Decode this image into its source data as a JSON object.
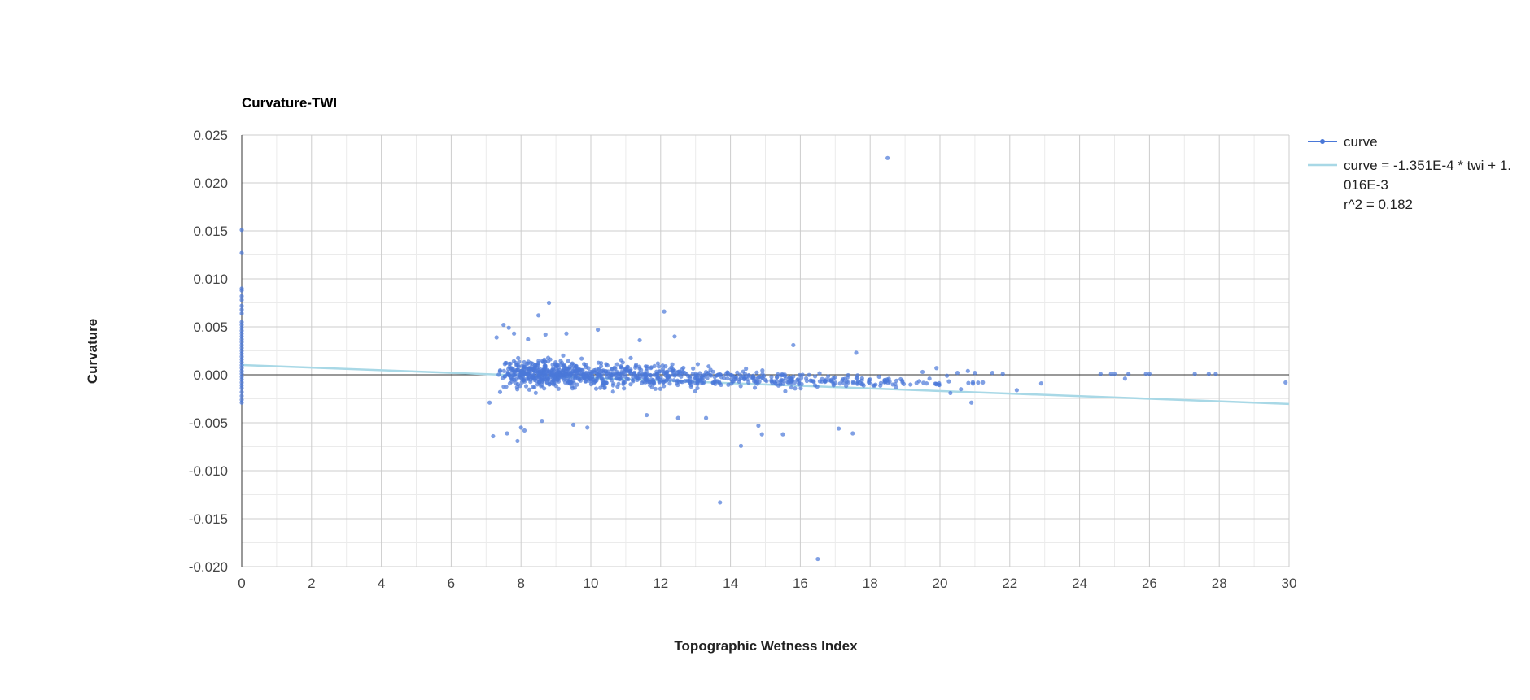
{
  "chart_data": {
    "type": "scatter",
    "title": "Curvature-TWI",
    "xlabel": "Topographic Wetness Index",
    "ylabel": "Curvature",
    "xlim": [
      0,
      30
    ],
    "ylim": [
      -0.02,
      0.025
    ],
    "x_ticks": [
      "0",
      "2",
      "4",
      "6",
      "8",
      "10",
      "12",
      "14",
      "16",
      "18",
      "20",
      "22",
      "24",
      "26",
      "28",
      "30"
    ],
    "y_ticks": [
      "0.025",
      "0.020",
      "0.015",
      "0.010",
      "0.005",
      "0.000",
      "-0.005",
      "-0.010",
      "-0.015",
      "-0.020"
    ],
    "grid": true,
    "legend_position": "right",
    "colors": {
      "points": "#4a78d8",
      "trendline": "#a8d8e6"
    },
    "legend": [
      {
        "label": "curve"
      },
      {
        "label_lines": [
          "curve = -1.351E-4 * twi + 1.",
          "016E-3",
          "r^2 = 0.182"
        ]
      }
    ],
    "trendline": {
      "slope": -0.0001351,
      "intercept": 0.001016,
      "r2": 0.182,
      "x_start": 0,
      "x_end": 30
    },
    "series": [
      {
        "name": "curve",
        "points": [
          [
            0,
            0.0151
          ],
          [
            0,
            0.0127
          ],
          [
            0,
            0.009
          ],
          [
            0,
            0.0088
          ],
          [
            0,
            0.0082
          ],
          [
            0,
            0.0078
          ],
          [
            0,
            0.0072
          ],
          [
            0,
            0.0068
          ],
          [
            0,
            0.0064
          ],
          [
            0,
            0.0055
          ],
          [
            0,
            0.0052
          ],
          [
            0,
            0.0049
          ],
          [
            0,
            0.0046
          ],
          [
            0,
            0.0043
          ],
          [
            0,
            0.004
          ],
          [
            0,
            0.0037
          ],
          [
            0,
            0.0034
          ],
          [
            0,
            0.0031
          ],
          [
            0,
            0.0028
          ],
          [
            0,
            0.0025
          ],
          [
            0,
            0.0022
          ],
          [
            0,
            0.0019
          ],
          [
            0,
            0.0016
          ],
          [
            0,
            0.0013
          ],
          [
            0,
            0.001
          ],
          [
            0,
            0.0007
          ],
          [
            0,
            0.0004
          ],
          [
            0,
            0.0001
          ],
          [
            0,
            -0.0002
          ],
          [
            0,
            -0.0005
          ],
          [
            0,
            -0.0008
          ],
          [
            0,
            -0.0011
          ],
          [
            0,
            -0.0014
          ],
          [
            0,
            -0.0018
          ],
          [
            0,
            -0.0022
          ],
          [
            0,
            -0.0026
          ],
          [
            0,
            -0.0029
          ],
          [
            18.5,
            0.0226
          ],
          [
            8.8,
            0.0075
          ],
          [
            8.5,
            0.0062
          ],
          [
            12.1,
            0.0066
          ],
          [
            10.2,
            0.0047
          ],
          [
            7.5,
            0.0052
          ],
          [
            7.65,
            0.0049
          ],
          [
            7.8,
            0.0043
          ],
          [
            7.3,
            0.0039
          ],
          [
            8.2,
            0.0037
          ],
          [
            8.7,
            0.0042
          ],
          [
            9.3,
            0.0043
          ],
          [
            11.4,
            0.0036
          ],
          [
            12.4,
            0.004
          ],
          [
            15.8,
            0.0031
          ],
          [
            17.6,
            0.0023
          ],
          [
            7.2,
            -0.0064
          ],
          [
            7.6,
            -0.0061
          ],
          [
            7.9,
            -0.0069
          ],
          [
            8.1,
            -0.0058
          ],
          [
            13.7,
            -0.0133
          ],
          [
            16.5,
            -0.0192
          ],
          [
            14.3,
            -0.0074
          ],
          [
            17.1,
            -0.0056
          ],
          [
            17.5,
            -0.0061
          ],
          [
            15.5,
            -0.0062
          ],
          [
            14.8,
            -0.0053
          ],
          [
            14.9,
            -0.0062
          ],
          [
            13.3,
            -0.0045
          ],
          [
            12.5,
            -0.0045
          ],
          [
            9.9,
            -0.0055
          ],
          [
            9.5,
            -0.0052
          ],
          [
            8.6,
            -0.0048
          ],
          [
            8.0,
            -0.0055
          ],
          [
            7.1,
            -0.0029
          ],
          [
            7.4,
            -0.0018
          ],
          [
            11.6,
            -0.0042
          ],
          [
            19.5,
            0.0003
          ],
          [
            19.7,
            -0.0004
          ],
          [
            19.9,
            0.0007
          ],
          [
            20.2,
            -0.0001
          ],
          [
            20.5,
            0.0002
          ],
          [
            20.8,
            0.0004
          ],
          [
            21.0,
            0.0002
          ],
          [
            20.3,
            -0.0019
          ],
          [
            20.6,
            -0.0015
          ],
          [
            20.9,
            -0.0029
          ],
          [
            21.5,
            0.0002
          ],
          [
            21.8,
            0.0001
          ],
          [
            22.2,
            -0.0016
          ],
          [
            22.9,
            -0.0009
          ],
          [
            24.6,
            0.0001
          ],
          [
            24.9,
            0.0001
          ],
          [
            25.0,
            0.0001
          ],
          [
            25.3,
            -0.0004
          ],
          [
            25.4,
            0.0001
          ],
          [
            25.9,
            0.0001
          ],
          [
            26.0,
            0.0001
          ],
          [
            27.3,
            0.0001
          ],
          [
            27.7,
            0.0001
          ],
          [
            27.9,
            0.0001
          ],
          [
            29.9,
            -0.0008
          ]
        ]
      }
    ]
  }
}
